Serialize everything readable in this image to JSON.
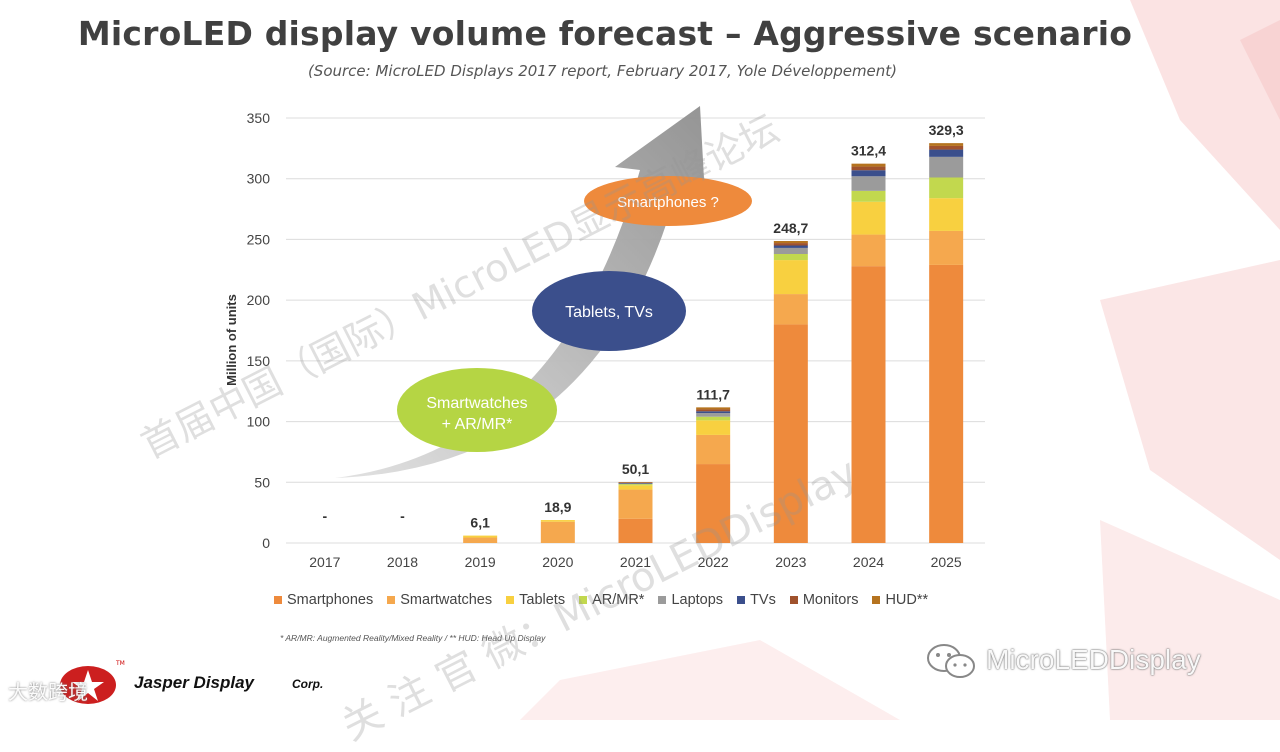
{
  "slide": {
    "title": "MicroLED display volume forecast – Aggressive scenario",
    "subtitle": "(Source: MicroLED Displays 2017 report, February 2017, Yole Développement)",
    "footnote": "* AR/MR: Augmented Reality/Mixed Reality / ** HUD: Head Up Display"
  },
  "annotations": {
    "stage1": [
      "Smartwatches",
      "+ AR/MR*"
    ],
    "stage2": "Tablets, TVs",
    "stage3": "Smartphones ?"
  },
  "chart_data": {
    "type": "bar",
    "stacked": true,
    "title": "MicroLED display volume forecast – Aggressive scenario",
    "ylabel": "Million of units",
    "xlabel": "",
    "ylim": [
      0,
      350
    ],
    "yticks": [
      0,
      50,
      100,
      150,
      200,
      250,
      300,
      350
    ],
    "categories": [
      "2017",
      "2018",
      "2019",
      "2020",
      "2021",
      "2022",
      "2023",
      "2024",
      "2025"
    ],
    "totals_labels": [
      "-",
      "-",
      "6,1",
      "18,9",
      "50,1",
      "111,7",
      "248,7",
      "312,4",
      "329,3"
    ],
    "series": [
      {
        "name": "Smartphones",
        "color": "#ee8a3c",
        "values": [
          0,
          0,
          0,
          0,
          20,
          65,
          180,
          228,
          229
        ]
      },
      {
        "name": "Smartwatches",
        "color": "#f5a84e",
        "values": [
          0,
          0,
          4.5,
          17.5,
          24,
          24,
          25,
          26,
          28
        ]
      },
      {
        "name": "Tablets",
        "color": "#f8d040",
        "values": [
          0,
          0,
          1.6,
          1.4,
          3.5,
          12,
          28,
          27,
          27
        ]
      },
      {
        "name": "AR/MR*",
        "color": "#c2d84e",
        "values": [
          0,
          0,
          0,
          0,
          1,
          3,
          5,
          9,
          17
        ]
      },
      {
        "name": "Laptops",
        "color": "#9b9b9b",
        "values": [
          0,
          0,
          0,
          0,
          0.5,
          3,
          5,
          12,
          17
        ]
      },
      {
        "name": "TVs",
        "color": "#3b4f8c",
        "values": [
          0,
          0,
          0,
          0,
          0.4,
          1.5,
          2,
          5,
          6
        ]
      },
      {
        "name": "Monitors",
        "color": "#a0522d",
        "values": [
          0,
          0,
          0,
          0,
          0.4,
          1.5,
          2,
          3,
          3
        ]
      },
      {
        "name": "HUD**",
        "color": "#b5731f",
        "values": [
          0,
          0,
          0,
          0,
          0.3,
          1.7,
          1.7,
          2.4,
          2.3
        ]
      }
    ]
  },
  "branding": {
    "logo_text": "Jasper Display",
    "logo_suffix": "Corp.",
    "tm": "TM",
    "watermark_diagonal": "首届中国（国际）MicroLED显示高峰论坛",
    "watermark_diagonal2": "关 注 官 微：MicroLEDDisplay",
    "watermark_account": "MicroLEDDisplay",
    "watermark_corner": "大数跨境",
    "brand_red": "#cc1f1f"
  }
}
